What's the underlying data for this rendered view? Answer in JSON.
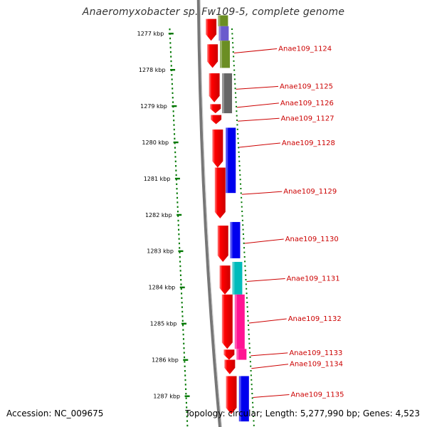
{
  "title": "Anaeromyxobacter sp. Fw109-5, complete genome",
  "accession_label": "Accession: NC_009675",
  "topology_label": "Topology: circular; Length: 5,277,990 bp; Genes: 4,523",
  "ticks": [
    "1277 kbp",
    "1278 kbp",
    "1279 kbp",
    "1280 kbp",
    "1281 kbp",
    "1282 kbp",
    "1283 kbp",
    "1284 kbp",
    "1285 kbp",
    "1286 kbp",
    "1287 kbp"
  ],
  "colors": {
    "forward_strand": "#ff0000",
    "backbone": "#777777",
    "tick": "#007700",
    "gene_label": "#cc0000"
  },
  "forward_genes": [
    {
      "start": 1276.6,
      "end": 1277.2
    },
    {
      "start": 1277.3,
      "end": 1277.95
    },
    {
      "start": 1278.1,
      "end": 1278.9
    },
    {
      "start": 1278.95,
      "end": 1279.2
    },
    {
      "start": 1279.25,
      "end": 1279.5
    },
    {
      "start": 1279.65,
      "end": 1280.7
    },
    {
      "start": 1280.7,
      "end": 1282.1
    },
    {
      "start": 1282.3,
      "end": 1283.3
    },
    {
      "start": 1283.4,
      "end": 1284.2
    },
    {
      "start": 1284.2,
      "end": 1285.7
    },
    {
      "start": 1285.72,
      "end": 1286.0
    },
    {
      "start": 1286.0,
      "end": 1286.4
    },
    {
      "start": 1286.45,
      "end": 1287.5
    }
  ],
  "category_blocks": [
    {
      "start": 1276.5,
      "end": 1276.8,
      "color": "#6b8e23"
    },
    {
      "start": 1276.8,
      "end": 1277.2,
      "color": "#6a5acd"
    },
    {
      "start": 1277.2,
      "end": 1277.95,
      "color": "#6b8e23"
    },
    {
      "start": 1278.1,
      "end": 1279.2,
      "color": "#666666"
    },
    {
      "start": 1279.6,
      "end": 1281.4,
      "color": "#0000ee"
    },
    {
      "start": 1282.2,
      "end": 1283.2,
      "color": "#0000ee"
    },
    {
      "start": 1283.3,
      "end": 1284.2,
      "color": "#00bbbb"
    },
    {
      "start": 1284.2,
      "end": 1285.7,
      "color": "#ff1493"
    },
    {
      "start": 1285.7,
      "end": 1286.0,
      "color": "#ff1493"
    },
    {
      "start": 1286.45,
      "end": 1287.7,
      "color": "#0000ee"
    }
  ],
  "gene_labels": [
    {
      "text": "Anae109_1124",
      "pos": 1277.5
    },
    {
      "text": "Anae109_1125",
      "pos": 1278.5
    },
    {
      "text": "Anae109_1126",
      "pos": 1279.0
    },
    {
      "text": "Anae109_1127",
      "pos": 1279.38
    },
    {
      "text": "Anae109_1128",
      "pos": 1280.1
    },
    {
      "text": "Anae109_1129",
      "pos": 1281.4
    },
    {
      "text": "Anae109_1130",
      "pos": 1282.75
    },
    {
      "text": "Anae109_1131",
      "pos": 1283.8
    },
    {
      "text": "Anae109_1132",
      "pos": 1284.95
    },
    {
      "text": "Anae109_1133",
      "pos": 1285.85
    },
    {
      "text": "Anae109_1134",
      "pos": 1286.2
    },
    {
      "text": "Anae109_1135",
      "pos": 1287.0
    }
  ]
}
